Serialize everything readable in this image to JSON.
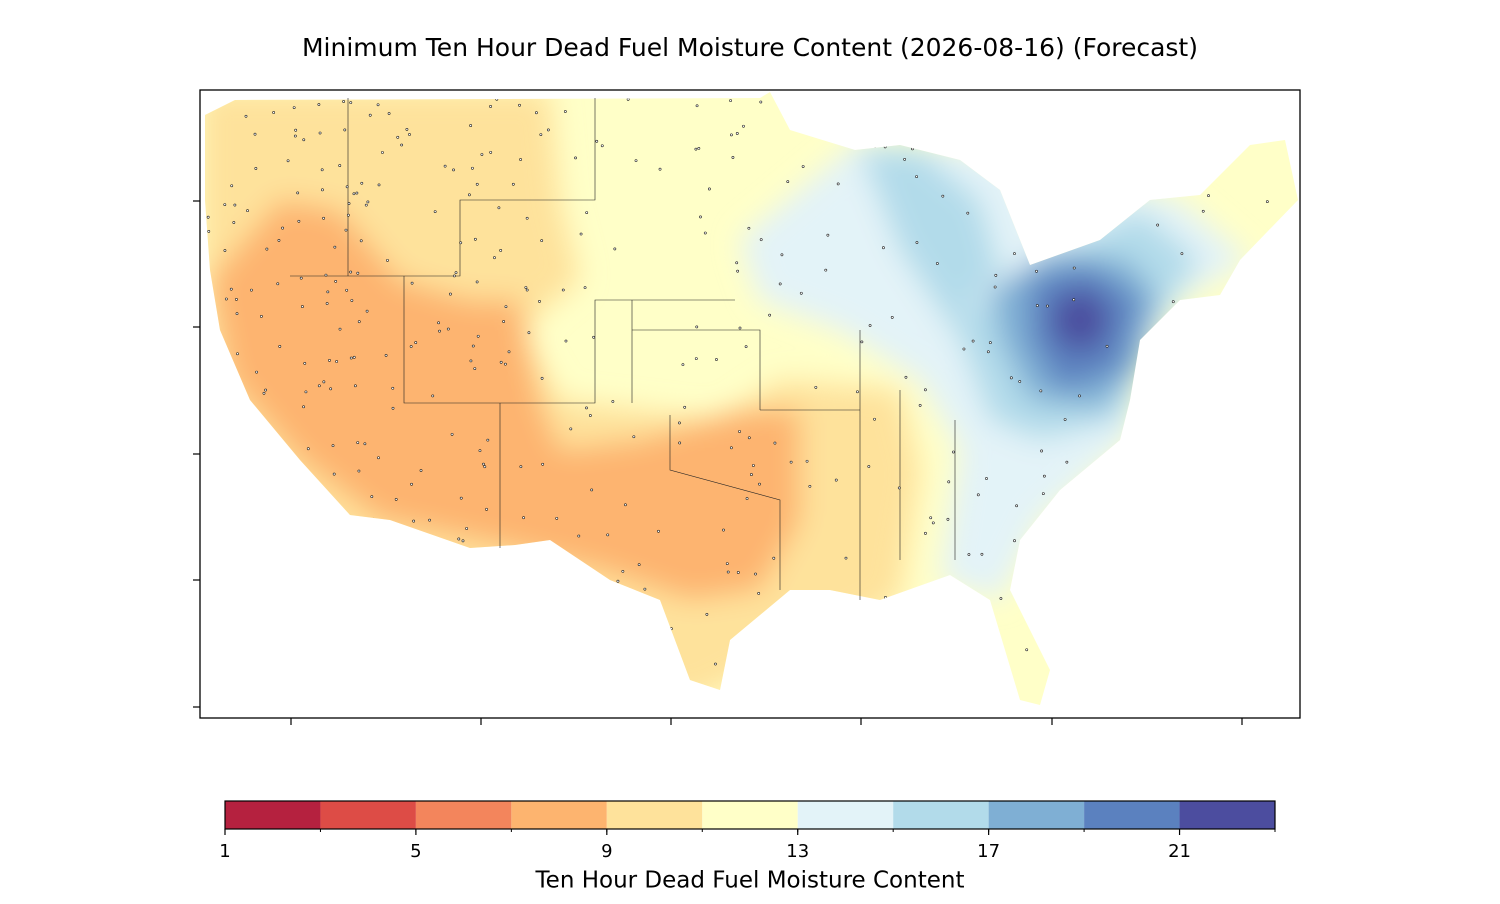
{
  "title": "Minimum Ten Hour Dead Fuel Moisture Content (2026-08-16) (Forecast)",
  "colorbar": {
    "label": "Ten Hour Dead Fuel Moisture Content",
    "lim": [
      1,
      23
    ],
    "boundaries": [
      1,
      3,
      5,
      7,
      9,
      11,
      13,
      15,
      17,
      19,
      21,
      23
    ],
    "colors": [
      "#b5213f",
      "#dd4c46",
      "#f3855c",
      "#fdb46f",
      "#fee29b",
      "#ffffc8",
      "#e3f3f8",
      "#b2dbea",
      "#7fafd4",
      "#5b81bf",
      "#4c4d9f"
    ],
    "ticks": [
      1,
      5,
      9,
      13,
      17,
      21
    ]
  }
}
